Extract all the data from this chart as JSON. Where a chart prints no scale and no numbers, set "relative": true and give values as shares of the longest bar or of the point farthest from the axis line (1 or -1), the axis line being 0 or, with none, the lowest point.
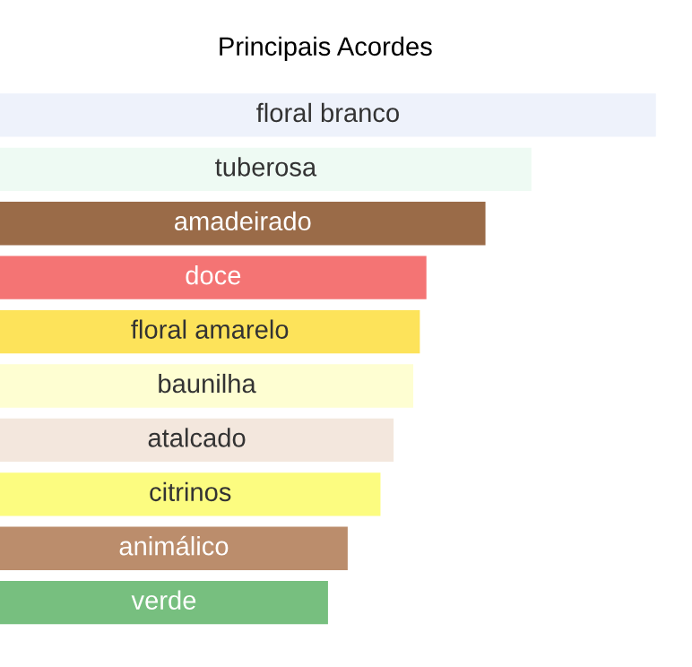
{
  "chart_data": {
    "type": "bar",
    "orientation": "horizontal",
    "relative": true,
    "title": "Principais Acordes",
    "categories": [
      "floral branco",
      "tuberosa",
      "amadeirado",
      "doce",
      "floral amarelo",
      "baunilha",
      "atalcado",
      "citrinos",
      "animálico",
      "verde"
    ],
    "values": [
      1,
      0.81,
      0.74,
      0.65,
      0.64,
      0.63,
      0.6,
      0.58,
      0.53,
      0.5
    ],
    "colors": [
      "#eef2fb",
      "#eefaf3",
      "#9a6b48",
      "#f47474",
      "#fde35a",
      "#fefed2",
      "#f3e7dd",
      "#fcfc80",
      "#bb8d6c",
      "#77bf7f"
    ],
    "legend": false
  }
}
